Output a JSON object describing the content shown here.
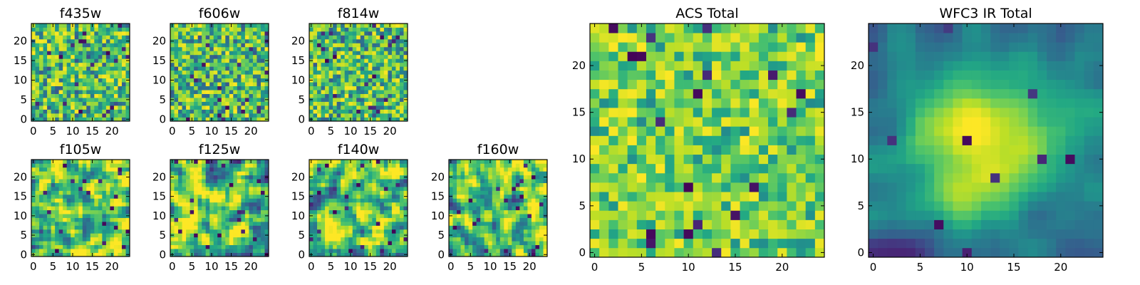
{
  "figure": {},
  "chart_data": [
    {
      "type": "heatmap",
      "title": "f435w",
      "grid": [
        25,
        25
      ],
      "xlim": [
        -0.5,
        24.5
      ],
      "ylim": [
        -0.5,
        24.5
      ],
      "xticks": [
        0,
        5,
        10,
        15,
        20
      ],
      "yticks": [
        0,
        5,
        10,
        15,
        20
      ],
      "colormap": "viridis",
      "texture": "noise",
      "seed": 11
    },
    {
      "type": "heatmap",
      "title": "f606w",
      "grid": [
        25,
        25
      ],
      "xlim": [
        -0.5,
        24.5
      ],
      "ylim": [
        -0.5,
        24.5
      ],
      "xticks": [
        0,
        5,
        10,
        15,
        20
      ],
      "yticks": [
        0,
        5,
        10,
        15,
        20
      ],
      "colormap": "viridis",
      "texture": "noise",
      "seed": 23
    },
    {
      "type": "heatmap",
      "title": "f814w",
      "grid": [
        25,
        25
      ],
      "xlim": [
        -0.5,
        24.5
      ],
      "ylim": [
        -0.5,
        24.5
      ],
      "xticks": [
        0,
        5,
        10,
        15,
        20
      ],
      "yticks": [
        0,
        5,
        10,
        15,
        20
      ],
      "colormap": "viridis",
      "texture": "noise",
      "seed": 37
    },
    {
      "type": "heatmap",
      "title": "f105w",
      "grid": [
        25,
        25
      ],
      "xlim": [
        -0.5,
        24.5
      ],
      "ylim": [
        -0.5,
        24.5
      ],
      "xticks": [
        0,
        5,
        10,
        15,
        20
      ],
      "yticks": [
        0,
        5,
        10,
        15,
        20
      ],
      "colormap": "viridis",
      "texture": "smooth",
      "seed": 41
    },
    {
      "type": "heatmap",
      "title": "f125w",
      "grid": [
        25,
        25
      ],
      "xlim": [
        -0.5,
        24.5
      ],
      "ylim": [
        -0.5,
        24.5
      ],
      "xticks": [
        0,
        5,
        10,
        15,
        20
      ],
      "yticks": [
        0,
        5,
        10,
        15,
        20
      ],
      "colormap": "viridis",
      "texture": "smooth",
      "seed": 53
    },
    {
      "type": "heatmap",
      "title": "f140w",
      "grid": [
        25,
        25
      ],
      "xlim": [
        -0.5,
        24.5
      ],
      "ylim": [
        -0.5,
        24.5
      ],
      "xticks": [
        0,
        5,
        10,
        15,
        20
      ],
      "yticks": [
        0,
        5,
        10,
        15,
        20
      ],
      "colormap": "viridis",
      "texture": "smooth",
      "seed": 67
    },
    {
      "type": "heatmap",
      "title": "f160w",
      "grid": [
        25,
        25
      ],
      "xlim": [
        -0.5,
        24.5
      ],
      "ylim": [
        -0.5,
        24.5
      ],
      "xticks": [
        0,
        5,
        10,
        15,
        20
      ],
      "yticks": [
        0,
        5,
        10,
        15,
        20
      ],
      "colormap": "viridis",
      "texture": "smooth",
      "seed": 79
    },
    {
      "type": "heatmap",
      "title": "ACS Total",
      "grid": [
        25,
        25
      ],
      "xlim": [
        -0.5,
        24.5
      ],
      "ylim": [
        -0.5,
        24.5
      ],
      "xticks": [
        0,
        5,
        10,
        15,
        20
      ],
      "yticks": [
        0,
        5,
        10,
        15,
        20
      ],
      "colormap": "viridis",
      "texture": "noise-bright",
      "seed": 83
    },
    {
      "type": "heatmap",
      "title": "WFC3 IR Total",
      "grid": [
        25,
        25
      ],
      "xlim": [
        -0.5,
        24.5
      ],
      "ylim": [
        -0.5,
        24.5
      ],
      "xticks": [
        0,
        5,
        10,
        15,
        20
      ],
      "yticks": [
        0,
        5,
        10,
        15,
        20
      ],
      "colormap": "viridis",
      "texture": "blob",
      "seed": 97
    }
  ]
}
